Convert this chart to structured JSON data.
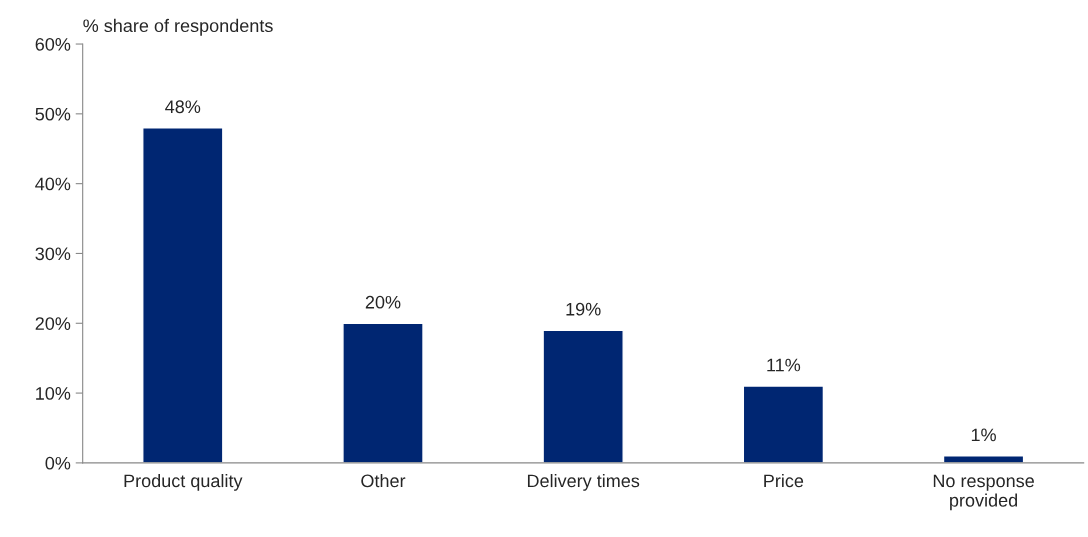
{
  "chart_data": {
    "type": "bar",
    "ylabel": "% share of respondents",
    "categories": [
      "Product quality",
      "Other",
      "Delivery times",
      "Price",
      "No response\nprovided"
    ],
    "values": [
      48,
      20,
      19,
      11,
      1
    ],
    "value_labels": [
      "48%",
      "20%",
      "19%",
      "11%",
      "1%"
    ],
    "color": "#002672",
    "ylim": [
      0,
      60
    ],
    "yticks": [
      {
        "value": 0,
        "label": "0%"
      },
      {
        "value": 10,
        "label": "10%"
      },
      {
        "value": 20,
        "label": "20%"
      },
      {
        "value": 30,
        "label": "30%"
      },
      {
        "value": 40,
        "label": "40%"
      },
      {
        "value": 50,
        "label": "50%"
      },
      {
        "value": 60,
        "label": "60%"
      }
    ],
    "grid": false,
    "legend": false
  }
}
